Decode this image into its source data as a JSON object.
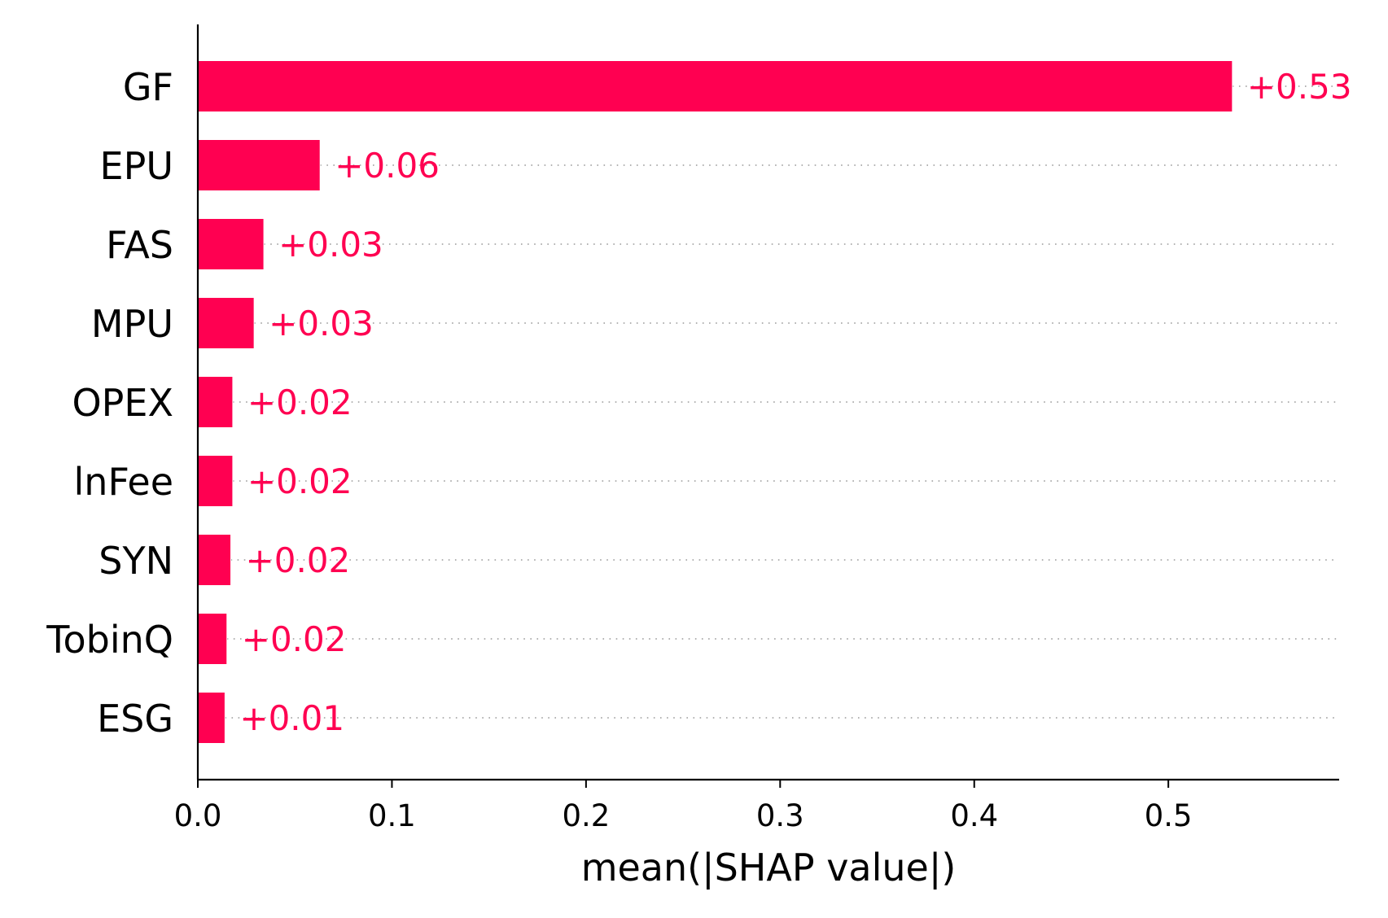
{
  "chart_data": {
    "type": "bar",
    "orientation": "horizontal",
    "title": "",
    "xlabel": "mean(|SHAP value|)",
    "ylabel": "",
    "categories": [
      "GF",
      "EPU",
      "FAS",
      "MPU",
      "OPEX",
      "lnFee",
      "SYN",
      "TobinQ",
      "ESG"
    ],
    "values": [
      0.533,
      0.063,
      0.034,
      0.029,
      0.018,
      0.018,
      0.017,
      0.015,
      0.014
    ],
    "value_labels": [
      "+0.53",
      "+0.06",
      "+0.03",
      "+0.03",
      "+0.02",
      "+0.02",
      "+0.02",
      "+0.02",
      "+0.01"
    ],
    "xlim": [
      0,
      0.588
    ],
    "xticks": [
      0.0,
      0.1,
      0.2,
      0.3,
      0.4,
      0.5
    ],
    "xtick_labels": [
      "0.0",
      "0.1",
      "0.2",
      "0.3",
      "0.4",
      "0.5"
    ],
    "grid": "dotted row guide lines",
    "legend": "none"
  },
  "colors": {
    "bar": "#ff0051",
    "value_label": "#ff0051",
    "axis": "#000000",
    "guide": "#999999"
  }
}
